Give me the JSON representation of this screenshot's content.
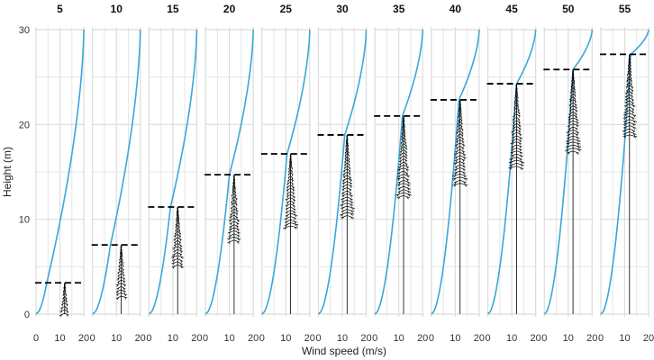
{
  "chart_data": {
    "type": "line",
    "xlabel": "Wind speed (m/s)",
    "ylabel": "Height (m)",
    "xlim": [
      0,
      20
    ],
    "ylim": [
      0,
      30
    ],
    "x_ticks": [
      "0",
      "10",
      "20"
    ],
    "y_ticks": [
      "0",
      "10",
      "20",
      "30"
    ],
    "panels": [
      {
        "label": "5",
        "tree_height": 3.3,
        "crown_base": 0.1,
        "speed_at_top": 4.5
      },
      {
        "label": "10",
        "tree_height": 7.3,
        "crown_base": 1.9,
        "speed_at_top": 7.5
      },
      {
        "label": "15",
        "tree_height": 11.3,
        "crown_base": 5.2,
        "speed_at_top": 9.0
      },
      {
        "label": "20",
        "tree_height": 14.7,
        "crown_base": 7.8,
        "speed_at_top": 10.0
      },
      {
        "label": "25",
        "tree_height": 16.9,
        "crown_base": 9.3,
        "speed_at_top": 10.5
      },
      {
        "label": "30",
        "tree_height": 18.9,
        "crown_base": 10.4,
        "speed_at_top": 11.0
      },
      {
        "label": "35",
        "tree_height": 20.9,
        "crown_base": 12.5,
        "speed_at_top": 11.5
      },
      {
        "label": "40",
        "tree_height": 22.6,
        "crown_base": 13.8,
        "speed_at_top": 11.5
      },
      {
        "label": "45",
        "tree_height": 24.3,
        "crown_base": 15.6,
        "speed_at_top": 12.0
      },
      {
        "label": "50",
        "tree_height": 25.8,
        "crown_base": 17.2,
        "speed_at_top": 12.0
      },
      {
        "label": "55",
        "tree_height": 27.4,
        "crown_base": 18.9,
        "speed_at_top": 12.5
      }
    ],
    "wind_speed_at_30m": 20,
    "grid": true
  },
  "colors": {
    "wind_profile": "#3aa7d9",
    "tree": "#000000",
    "tree_height_line": "#000000"
  }
}
